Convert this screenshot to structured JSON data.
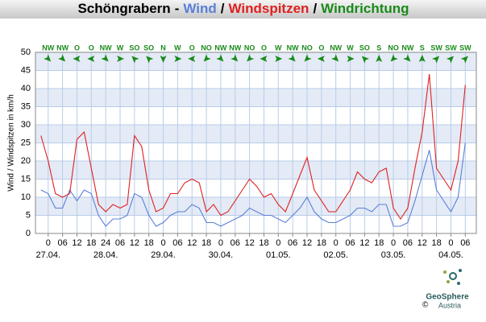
{
  "chart_data": {
    "type": "line",
    "title": "Schöngrabern",
    "title_separators": [
      "-",
      "/",
      "/"
    ],
    "direction_title": "Windrichtung",
    "direction_color": "#1a8a1a",
    "y_label": "Wind / Windspitzen in km/h",
    "x": [
      -3,
      0,
      3,
      6,
      9,
      12,
      15,
      18,
      21,
      24,
      27,
      30,
      33,
      36,
      39,
      42,
      45,
      48,
      51,
      54,
      57,
      60,
      63,
      66,
      69,
      72,
      75,
      78,
      81,
      84,
      87,
      90,
      93,
      96,
      99,
      102,
      105,
      108,
      111,
      114,
      117,
      120,
      123,
      126,
      129,
      132,
      135,
      138,
      141,
      144,
      147,
      150,
      153,
      156,
      159,
      162,
      165,
      168,
      171,
      174
    ],
    "series": [
      {
        "name": "Wind",
        "color": "#5b7fd8",
        "values": [
          12,
          11,
          7,
          7,
          12,
          9,
          12,
          11,
          5,
          2,
          4,
          4,
          5,
          11,
          10,
          5,
          2,
          3,
          5,
          6,
          6,
          8,
          7,
          3,
          3,
          2,
          3,
          4,
          5,
          7,
          6,
          5,
          5,
          4,
          3,
          5,
          7,
          10,
          6,
          4,
          3,
          3,
          4,
          5,
          7,
          7,
          6,
          8,
          8,
          2,
          2,
          3,
          9,
          16,
          23,
          12,
          9,
          6,
          10,
          25
        ]
      },
      {
        "name": "Windspitzen",
        "color": "#e02020",
        "values": [
          27,
          20,
          11,
          10,
          11,
          26,
          28,
          18,
          8,
          6,
          8,
          7,
          8,
          27,
          24,
          12,
          6,
          7,
          11,
          11,
          14,
          15,
          14,
          6,
          8,
          5,
          6,
          9,
          12,
          15,
          13,
          10,
          11,
          8,
          6,
          11,
          16,
          21,
          12,
          9,
          6,
          6,
          9,
          12,
          17,
          15,
          14,
          17,
          18,
          7,
          4,
          7,
          18,
          28,
          44,
          18,
          15,
          12,
          20,
          41
        ]
      }
    ],
    "xlim": [
      -5.3,
      178.6
    ],
    "ylim": [
      0,
      50
    ],
    "yticks": [
      0,
      5,
      10,
      15,
      20,
      25,
      30,
      35,
      40,
      45,
      50
    ],
    "xticks": [
      0,
      {
        "value": 6,
        "label": "06"
      },
      12,
      18,
      24,
      {
        "value": 30,
        "label": "06"
      },
      {
        "value": 36,
        "label": "12"
      },
      {
        "value": 42,
        "label": "18"
      },
      {
        "value": 48,
        "label": "0"
      },
      {
        "value": 54,
        "label": "06"
      },
      {
        "value": 60,
        "label": "12"
      },
      {
        "value": 66,
        "label": "18"
      },
      {
        "value": 72,
        "label": "0"
      },
      {
        "value": 78,
        "label": "06"
      },
      {
        "value": 84,
        "label": "12"
      },
      {
        "value": 90,
        "label": "18"
      },
      {
        "value": 96,
        "label": "0"
      },
      {
        "value": 102,
        "label": "06"
      },
      {
        "value": 108,
        "label": "12"
      },
      {
        "value": 114,
        "label": "18"
      },
      {
        "value": 120,
        "label": "0"
      },
      {
        "value": 126,
        "label": "06"
      },
      {
        "value": 132,
        "label": "12"
      },
      {
        "value": 138,
        "label": "18"
      },
      {
        "value": 144,
        "label": "0"
      },
      {
        "value": 150,
        "label": "06"
      },
      {
        "value": 156,
        "label": "12"
      },
      {
        "value": 162,
        "label": "18"
      },
      {
        "value": 168,
        "label": "0"
      },
      {
        "value": 174,
        "label": "06"
      }
    ],
    "date_labels": [
      {
        "value": 0,
        "label": "27.04."
      },
      {
        "value": 24,
        "label": "28.04."
      },
      {
        "value": 48,
        "label": "29.04."
      },
      {
        "value": 72,
        "label": "30.04."
      },
      {
        "value": 96,
        "label": "01.05."
      },
      {
        "value": 120,
        "label": "02.05."
      },
      {
        "value": 144,
        "label": "03.05."
      },
      {
        "value": 168,
        "label": "04.05."
      }
    ],
    "direction_x": [
      0,
      6,
      12,
      18,
      24,
      30,
      36,
      42,
      48,
      54,
      60,
      66,
      72,
      78,
      84,
      90,
      96,
      102,
      108,
      114,
      120,
      126,
      132,
      138,
      144,
      150,
      156,
      162,
      168,
      174
    ],
    "direction_labels": [
      "NW",
      "NW",
      "O",
      "O",
      "NW",
      "W",
      "SO",
      "SO",
      "N",
      "W",
      "O",
      "NO",
      "NW",
      "NW",
      "NO",
      "O",
      "W",
      "NW",
      "NO",
      "O",
      "NW",
      "W",
      "SO",
      "S",
      "NO",
      "NW",
      "S",
      "SW",
      "SW",
      "SW"
    ],
    "grid": true,
    "logo": "GeoSphere",
    "logo_sub": "Austria",
    "copyright": "©"
  }
}
